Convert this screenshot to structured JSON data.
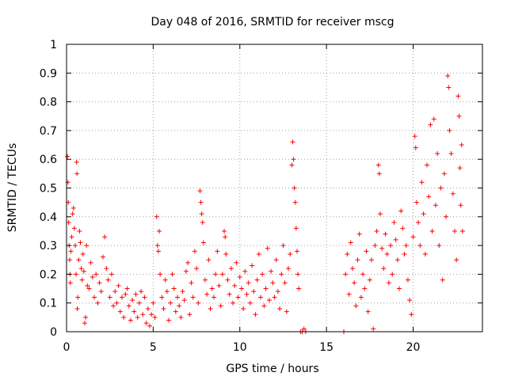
{
  "chart_data": {
    "type": "scatter",
    "title": "Day 048 of 2016, SRMTID for receiver mscg",
    "xlabel": "GPS time / hours",
    "ylabel": "SRMTID / TECUs",
    "xlim": [
      0,
      24
    ],
    "ylim": [
      0,
      1
    ],
    "x_ticks": [
      0,
      5,
      10,
      15,
      20
    ],
    "x_tick_labels": [
      "0",
      "5",
      "10",
      "15",
      "20"
    ],
    "y_ticks": [
      0,
      0.1,
      0.2,
      0.3,
      0.4,
      0.5,
      0.6,
      0.7,
      0.8,
      0.9,
      1
    ],
    "y_tick_labels": [
      "0",
      "0.1",
      "0.2",
      "0.3",
      "0.4",
      "0.5",
      "0.6",
      "0.7",
      "0.8",
      "0.9",
      "1"
    ],
    "grid": true,
    "marker": "+",
    "color": "#ff0000",
    "series": [
      {
        "name": "SRMTID",
        "points": [
          [
            0.05,
            0.61
          ],
          [
            0.08,
            0.52
          ],
          [
            0.1,
            0.45
          ],
          [
            0.12,
            0.38
          ],
          [
            0.15,
            0.3
          ],
          [
            0.18,
            0.25
          ],
          [
            0.2,
            0.2
          ],
          [
            0.22,
            0.17
          ],
          [
            0.25,
            0.28
          ],
          [
            0.3,
            0.33
          ],
          [
            0.35,
            0.41
          ],
          [
            0.4,
            0.43
          ],
          [
            0.45,
            0.36
          ],
          [
            0.5,
            0.3
          ],
          [
            0.55,
            0.2
          ],
          [
            0.58,
            0.59
          ],
          [
            0.6,
            0.55
          ],
          [
            0.62,
            0.08
          ],
          [
            0.65,
            0.12
          ],
          [
            0.7,
            0.25
          ],
          [
            0.75,
            0.35
          ],
          [
            0.8,
            0.31
          ],
          [
            0.85,
            0.22
          ],
          [
            0.9,
            0.18
          ],
          [
            0.95,
            0.27
          ],
          [
            1.0,
            0.21
          ],
          [
            1.05,
            0.03
          ],
          [
            1.1,
            0.05
          ],
          [
            1.15,
            0.3
          ],
          [
            1.2,
            0.16
          ],
          [
            1.3,
            0.15
          ],
          [
            1.4,
            0.24
          ],
          [
            1.5,
            0.19
          ],
          [
            1.6,
            0.12
          ],
          [
            1.7,
            0.2
          ],
          [
            1.8,
            0.1
          ],
          [
            1.9,
            0.17
          ],
          [
            2.0,
            0.14
          ],
          [
            2.1,
            0.26
          ],
          [
            2.2,
            0.33
          ],
          [
            2.3,
            0.22
          ],
          [
            2.4,
            0.18
          ],
          [
            2.5,
            0.12
          ],
          [
            2.6,
            0.2
          ],
          [
            2.7,
            0.09
          ],
          [
            2.8,
            0.14
          ],
          [
            2.9,
            0.1
          ],
          [
            3.0,
            0.16
          ],
          [
            3.1,
            0.07
          ],
          [
            3.2,
            0.12
          ],
          [
            3.3,
            0.05
          ],
          [
            3.4,
            0.13
          ],
          [
            3.5,
            0.15
          ],
          [
            3.6,
            0.09
          ],
          [
            3.7,
            0.04
          ],
          [
            3.8,
            0.11
          ],
          [
            3.9,
            0.07
          ],
          [
            4.0,
            0.13
          ],
          [
            4.1,
            0.05
          ],
          [
            4.2,
            0.1
          ],
          [
            4.3,
            0.14
          ],
          [
            4.4,
            0.06
          ],
          [
            4.5,
            0.12
          ],
          [
            4.6,
            0.03
          ],
          [
            4.7,
            0.08
          ],
          [
            4.8,
            0.02
          ],
          [
            4.9,
            0.06
          ],
          [
            5.0,
            0.1
          ],
          [
            5.1,
            0.05
          ],
          [
            5.2,
            0.4
          ],
          [
            5.25,
            0.3
          ],
          [
            5.3,
            0.28
          ],
          [
            5.35,
            0.35
          ],
          [
            5.4,
            0.2
          ],
          [
            5.5,
            0.12
          ],
          [
            5.6,
            0.08
          ],
          [
            5.7,
            0.18
          ],
          [
            5.8,
            0.14
          ],
          [
            5.9,
            0.04
          ],
          [
            6.0,
            0.1
          ],
          [
            6.1,
            0.2
          ],
          [
            6.2,
            0.15
          ],
          [
            6.3,
            0.07
          ],
          [
            6.4,
            0.12
          ],
          [
            6.5,
            0.09
          ],
          [
            6.6,
            0.05
          ],
          [
            6.7,
            0.14
          ],
          [
            6.8,
            0.11
          ],
          [
            6.9,
            0.21
          ],
          [
            7.0,
            0.24
          ],
          [
            7.1,
            0.06
          ],
          [
            7.2,
            0.17
          ],
          [
            7.3,
            0.12
          ],
          [
            7.4,
            0.28
          ],
          [
            7.5,
            0.22
          ],
          [
            7.6,
            0.1
          ],
          [
            7.7,
            0.49
          ],
          [
            7.75,
            0.45
          ],
          [
            7.8,
            0.41
          ],
          [
            7.85,
            0.38
          ],
          [
            7.9,
            0.31
          ],
          [
            8.0,
            0.18
          ],
          [
            8.1,
            0.13
          ],
          [
            8.2,
            0.25
          ],
          [
            8.3,
            0.08
          ],
          [
            8.4,
            0.15
          ],
          [
            8.5,
            0.12
          ],
          [
            8.6,
            0.2
          ],
          [
            8.7,
            0.28
          ],
          [
            8.8,
            0.16
          ],
          [
            8.9,
            0.09
          ],
          [
            9.0,
            0.2
          ],
          [
            9.1,
            0.35
          ],
          [
            9.15,
            0.33
          ],
          [
            9.2,
            0.27
          ],
          [
            9.3,
            0.18
          ],
          [
            9.4,
            0.13
          ],
          [
            9.5,
            0.22
          ],
          [
            9.6,
            0.1
          ],
          [
            9.7,
            0.16
          ],
          [
            9.8,
            0.24
          ],
          [
            9.9,
            0.12
          ],
          [
            10.0,
            0.19
          ],
          [
            10.1,
            0.15
          ],
          [
            10.2,
            0.08
          ],
          [
            10.3,
            0.21
          ],
          [
            10.4,
            0.13
          ],
          [
            10.5,
            0.17
          ],
          [
            10.6,
            0.1
          ],
          [
            10.7,
            0.23
          ],
          [
            10.8,
            0.14
          ],
          [
            10.9,
            0.06
          ],
          [
            11.0,
            0.18
          ],
          [
            11.1,
            0.27
          ],
          [
            11.2,
            0.12
          ],
          [
            11.3,
            0.2
          ],
          [
            11.4,
            0.09
          ],
          [
            11.5,
            0.15
          ],
          [
            11.6,
            0.29
          ],
          [
            11.7,
            0.11
          ],
          [
            11.8,
            0.21
          ],
          [
            11.9,
            0.17
          ],
          [
            12.0,
            0.12
          ],
          [
            12.1,
            0.25
          ],
          [
            12.2,
            0.14
          ],
          [
            12.3,
            0.08
          ],
          [
            12.4,
            0.2
          ],
          [
            12.5,
            0.3
          ],
          [
            12.6,
            0.17
          ],
          [
            12.7,
            0.07
          ],
          [
            12.8,
            0.22
          ],
          [
            12.9,
            0.27
          ],
          [
            13.0,
            0.58
          ],
          [
            13.05,
            0.66
          ],
          [
            13.1,
            0.6
          ],
          [
            13.15,
            0.5
          ],
          [
            13.2,
            0.45
          ],
          [
            13.25,
            0.36
          ],
          [
            13.3,
            0.28
          ],
          [
            13.35,
            0.2
          ],
          [
            13.4,
            0.15
          ],
          [
            13.5,
            0.0
          ],
          [
            13.6,
            0.0
          ],
          [
            13.7,
            0.01
          ],
          [
            13.8,
            0.0
          ],
          [
            16.0,
            0.0
          ],
          [
            16.1,
            0.2
          ],
          [
            16.2,
            0.27
          ],
          [
            16.3,
            0.13
          ],
          [
            16.4,
            0.31
          ],
          [
            16.5,
            0.22
          ],
          [
            16.6,
            0.17
          ],
          [
            16.7,
            0.09
          ],
          [
            16.8,
            0.25
          ],
          [
            16.9,
            0.34
          ],
          [
            17.0,
            0.12
          ],
          [
            17.1,
            0.2
          ],
          [
            17.2,
            0.15
          ],
          [
            17.3,
            0.28
          ],
          [
            17.4,
            0.07
          ],
          [
            17.5,
            0.18
          ],
          [
            17.6,
            0.25
          ],
          [
            17.7,
            0.01
          ],
          [
            17.8,
            0.3
          ],
          [
            17.9,
            0.35
          ],
          [
            18.0,
            0.58
          ],
          [
            18.05,
            0.55
          ],
          [
            18.1,
            0.41
          ],
          [
            18.2,
            0.29
          ],
          [
            18.3,
            0.22
          ],
          [
            18.4,
            0.34
          ],
          [
            18.5,
            0.27
          ],
          [
            18.6,
            0.17
          ],
          [
            18.7,
            0.3
          ],
          [
            18.8,
            0.2
          ],
          [
            18.9,
            0.38
          ],
          [
            19.0,
            0.32
          ],
          [
            19.1,
            0.25
          ],
          [
            19.2,
            0.15
          ],
          [
            19.3,
            0.42
          ],
          [
            19.4,
            0.36
          ],
          [
            19.5,
            0.27
          ],
          [
            19.6,
            0.3
          ],
          [
            19.7,
            0.18
          ],
          [
            19.8,
            0.11
          ],
          [
            19.9,
            0.06
          ],
          [
            20.0,
            0.33
          ],
          [
            20.1,
            0.68
          ],
          [
            20.15,
            0.64
          ],
          [
            20.2,
            0.45
          ],
          [
            20.3,
            0.38
          ],
          [
            20.4,
            0.3
          ],
          [
            20.5,
            0.52
          ],
          [
            20.6,
            0.41
          ],
          [
            20.7,
            0.27
          ],
          [
            20.8,
            0.58
          ],
          [
            20.9,
            0.47
          ],
          [
            21.0,
            0.72
          ],
          [
            21.1,
            0.35
          ],
          [
            21.2,
            0.74
          ],
          [
            21.3,
            0.44
          ],
          [
            21.4,
            0.62
          ],
          [
            21.5,
            0.3
          ],
          [
            21.6,
            0.5
          ],
          [
            21.7,
            0.18
          ],
          [
            21.8,
            0.55
          ],
          [
            21.9,
            0.4
          ],
          [
            22.0,
            0.89
          ],
          [
            22.05,
            0.85
          ],
          [
            22.1,
            0.7
          ],
          [
            22.2,
            0.62
          ],
          [
            22.3,
            0.48
          ],
          [
            22.4,
            0.35
          ],
          [
            22.5,
            0.25
          ],
          [
            22.6,
            0.82
          ],
          [
            22.65,
            0.75
          ],
          [
            22.7,
            0.57
          ],
          [
            22.75,
            0.44
          ],
          [
            22.8,
            0.65
          ],
          [
            22.85,
            0.35
          ]
        ]
      }
    ]
  }
}
